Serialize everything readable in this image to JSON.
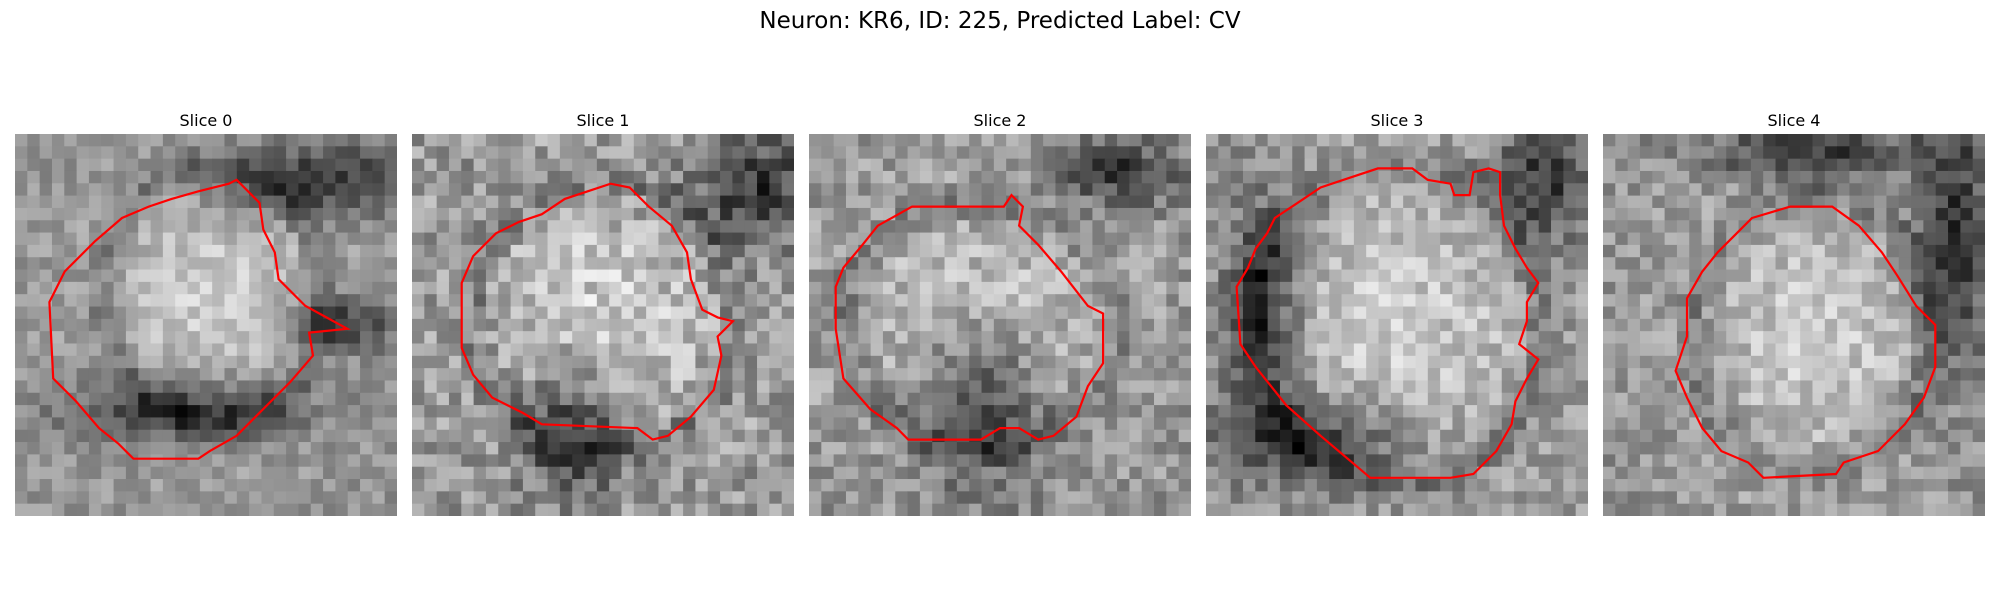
{
  "figure": {
    "title": "Neuron: KR6, ID: 225, Predicted Label: CV"
  },
  "panels": [
    {
      "title": "Slice 0",
      "contour_color": "#ff0000"
    },
    {
      "title": "Slice 1",
      "contour_color": "#ff0000"
    },
    {
      "title": "Slice 2",
      "contour_color": "#ff0000"
    },
    {
      "title": "Slice 3",
      "contour_color": "#ff0000"
    },
    {
      "title": "Slice 4",
      "contour_color": "#ff0000"
    }
  ]
}
